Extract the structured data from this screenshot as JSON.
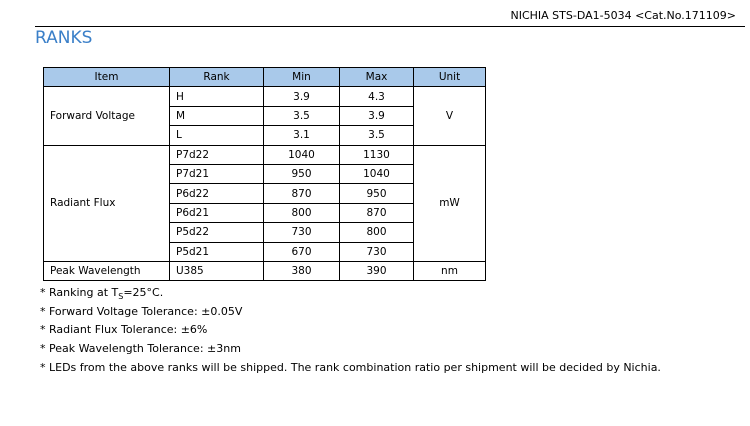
{
  "header": {
    "doc_id": "NICHIA STS-DA1-5034 <Cat.No.171109>",
    "title": "RANKS"
  },
  "table": {
    "columns": [
      "Item",
      "Rank",
      "Min",
      "Max",
      "Unit"
    ],
    "groups": [
      {
        "item": "Forward Voltage",
        "unit": "V",
        "ranks": [
          {
            "rank": "H",
            "min": "3.9",
            "max": "4.3"
          },
          {
            "rank": "M",
            "min": "3.5",
            "max": "3.9"
          },
          {
            "rank": "L",
            "min": "3.1",
            "max": "3.5"
          }
        ]
      },
      {
        "item": "Radiant Flux",
        "unit": "mW",
        "ranks": [
          {
            "rank": "P7d22",
            "min": "1040",
            "max": "1130"
          },
          {
            "rank": "P7d21",
            "min": "950",
            "max": "1040"
          },
          {
            "rank": "P6d22",
            "min": "870",
            "max": "950"
          },
          {
            "rank": "P6d21",
            "min": "800",
            "max": "870"
          },
          {
            "rank": "P5d22",
            "min": "730",
            "max": "800"
          },
          {
            "rank": "P5d21",
            "min": "670",
            "max": "730"
          }
        ]
      },
      {
        "item": "Peak Wavelength",
        "unit": "nm",
        "ranks": [
          {
            "rank": "U385",
            "min": "380",
            "max": "390"
          }
        ]
      }
    ]
  },
  "notes": {
    "first": {
      "prefix": "* Ranking at T",
      "subscript": "S",
      "suffix": "=25°C."
    },
    "others": [
      "* Forward Voltage Tolerance: ±0.05V",
      "* Radiant Flux Tolerance: ±6%",
      "* Peak Wavelength Tolerance: ±3nm",
      "* LEDs from the above ranks will be shipped. The rank combination ratio per shipment will be decided by Nichia."
    ]
  }
}
